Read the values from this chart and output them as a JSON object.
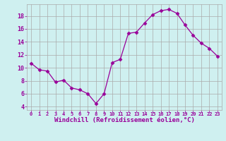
{
  "x": [
    0,
    1,
    2,
    3,
    4,
    5,
    6,
    7,
    8,
    9,
    10,
    11,
    12,
    13,
    14,
    15,
    16,
    17,
    18,
    19,
    20,
    21,
    22,
    23
  ],
  "y": [
    10.7,
    9.7,
    9.5,
    7.8,
    8.1,
    6.9,
    6.6,
    6.0,
    4.5,
    6.0,
    10.8,
    11.3,
    15.3,
    15.5,
    16.9,
    18.2,
    18.8,
    19.0,
    18.4,
    16.6,
    15.0,
    13.8,
    13.0,
    11.8
  ],
  "line_color": "#990099",
  "marker": "D",
  "marker_size": 2.5,
  "bg_color": "#cff0f0",
  "grid_color": "#aaaaaa",
  "xlabel": "Windchill (Refroidissement éolien,°C)",
  "xlabel_color": "#990099",
  "tick_color": "#990099",
  "ylim": [
    3.5,
    19.8
  ],
  "xlim": [
    -0.5,
    23.5
  ],
  "yticks": [
    4,
    6,
    8,
    10,
    12,
    14,
    16,
    18
  ],
  "xticks": [
    0,
    1,
    2,
    3,
    4,
    5,
    6,
    7,
    8,
    9,
    10,
    11,
    12,
    13,
    14,
    15,
    16,
    17,
    18,
    19,
    20,
    21,
    22,
    23
  ],
  "xlabel_fontsize": 6.5,
  "xtick_fontsize": 5.0,
  "ytick_fontsize": 6.0
}
